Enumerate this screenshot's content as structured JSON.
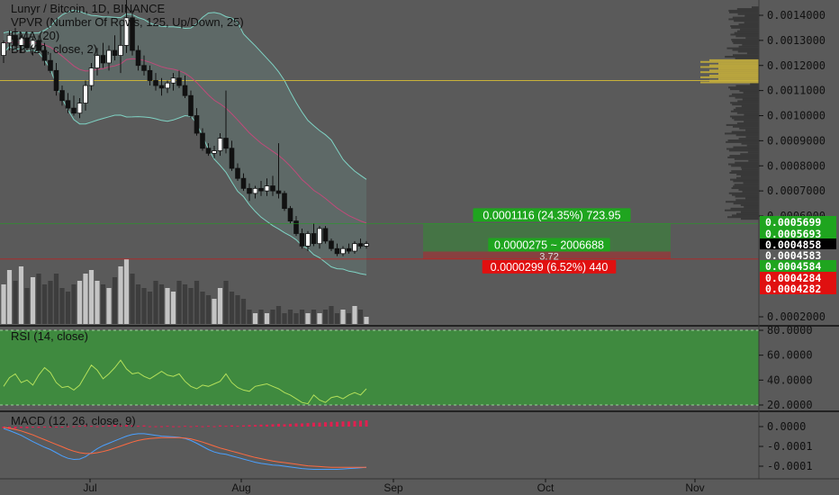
{
  "chart_data": {
    "type": "candlestick",
    "header": {
      "title": "Lunyr / Bitcoin, 1D, BINANCE",
      "indicators": [
        "VPVR (Number Of Rows, 125, Up/Down, 25)",
        "EMA (20)",
        "BB (20, close, 2)"
      ]
    },
    "price_axis": {
      "ticks": [
        "0.0014000",
        "0.0013000",
        "0.0012000",
        "0.0011000",
        "0.0010000",
        "0.0009000",
        "0.0008000",
        "0.0007000",
        "0.0006000",
        "0.0002000"
      ],
      "tick_values": [
        0.0014,
        0.0013,
        0.0012,
        0.0011,
        0.001,
        0.0009,
        0.0008,
        0.0007,
        0.0006,
        0.0002
      ]
    },
    "price_labels": [
      {
        "text": "0.0005699",
        "value": 0.0005699,
        "color": "#1fa51f"
      },
      {
        "text": "0.0005693",
        "value": 0.0005693,
        "color": "#1fa51f"
      },
      {
        "text": "0.0004858",
        "value": 0.0004858,
        "color": "#000000"
      },
      {
        "text": "0.0004583",
        "value": 0.0004583,
        "color": "#5a5a5a"
      },
      {
        "text": "0.0004584",
        "value": 0.0004584,
        "color": "#1fa51f"
      },
      {
        "text": "0.0004284",
        "value": 0.0004284,
        "color": "#e01010"
      },
      {
        "text": "0.0004282",
        "value": 0.0004282,
        "color": "#e01010"
      }
    ],
    "time_axis": {
      "ticks": [
        "Jul",
        "Aug",
        "Sep",
        "Oct",
        "Nov"
      ]
    },
    "position": {
      "target_label": "0.0001116 (24.35%) 723.95",
      "mid_label": "0.0000275 ~ 2006688",
      "mid_sub_label": "3.72",
      "stop_label": "0.0000299 (6.52%) 440",
      "entry": 0.0004583,
      "target": 0.0005699,
      "stop": 0.0004284
    },
    "horizontal_line": 0.00114,
    "candles": [
      [
        0.00124,
        0.0013,
        0.00121,
        0.00129
      ],
      [
        0.00129,
        0.00134,
        0.00126,
        0.00132
      ],
      [
        0.00132,
        0.00135,
        0.00127,
        0.00128
      ],
      [
        0.00128,
        0.00132,
        0.00125,
        0.00131
      ],
      [
        0.00131,
        0.00133,
        0.00126,
        0.00127
      ],
      [
        0.00127,
        0.00131,
        0.00124,
        0.0013
      ],
      [
        0.0013,
        0.00132,
        0.00125,
        0.00126
      ],
      [
        0.00126,
        0.00129,
        0.0012,
        0.00122
      ],
      [
        0.00122,
        0.00125,
        0.00117,
        0.00118
      ],
      [
        0.00118,
        0.00121,
        0.00108,
        0.0011
      ],
      [
        0.0011,
        0.00112,
        0.00104,
        0.00106
      ],
      [
        0.00106,
        0.00109,
        0.00101,
        0.00103
      ],
      [
        0.00103,
        0.00108,
        0.001,
        0.00101
      ],
      [
        0.00101,
        0.00107,
        0.00099,
        0.00105
      ],
      [
        0.00105,
        0.00114,
        0.00102,
        0.00112
      ],
      [
        0.00112,
        0.00121,
        0.0011,
        0.00119
      ],
      [
        0.00119,
        0.00127,
        0.00116,
        0.00124
      ],
      [
        0.00124,
        0.00129,
        0.00119,
        0.00121
      ],
      [
        0.00121,
        0.00128,
        0.00118,
        0.00126
      ],
      [
        0.00126,
        0.00132,
        0.00122,
        0.00124
      ],
      [
        0.00124,
        0.00136,
        0.00117,
        0.00128
      ],
      [
        0.00128,
        0.00147,
        0.00125,
        0.00139
      ],
      [
        0.00139,
        0.00142,
        0.00124,
        0.00126
      ],
      [
        0.00126,
        0.00128,
        0.00118,
        0.0012
      ],
      [
        0.0012,
        0.00124,
        0.00116,
        0.00118
      ],
      [
        0.00118,
        0.0012,
        0.00112,
        0.00114
      ],
      [
        0.00114,
        0.00117,
        0.0011,
        0.00112
      ],
      [
        0.00112,
        0.00115,
        0.00108,
        0.00111
      ],
      [
        0.00111,
        0.00114,
        0.00109,
        0.00113
      ],
      [
        0.00113,
        0.00117,
        0.0011,
        0.00115
      ],
      [
        0.00115,
        0.00118,
        0.00111,
        0.00112
      ],
      [
        0.00112,
        0.00116,
        0.00107,
        0.00108
      ],
      [
        0.00108,
        0.0011,
        0.00099,
        0.001
      ],
      [
        0.001,
        0.00103,
        0.00092,
        0.00093
      ],
      [
        0.00093,
        0.00095,
        0.00086,
        0.00087
      ],
      [
        0.00087,
        0.00089,
        0.00084,
        0.00085
      ],
      [
        0.00085,
        0.00088,
        0.00083,
        0.00086
      ],
      [
        0.00086,
        0.00093,
        0.00084,
        0.00091
      ],
      [
        0.00091,
        0.0011,
        0.00085,
        0.00087
      ],
      [
        0.00087,
        0.0009,
        0.00078,
        0.00079
      ],
      [
        0.00079,
        0.00081,
        0.00074,
        0.00075
      ],
      [
        0.00075,
        0.00077,
        0.0007,
        0.00071
      ],
      [
        0.00071,
        0.00073,
        0.00066,
        0.00069
      ],
      [
        0.00069,
        0.00072,
        0.00067,
        0.00071
      ],
      [
        0.00071,
        0.00074,
        0.00068,
        0.0007
      ],
      [
        0.0007,
        0.00075,
        0.00068,
        0.00072
      ],
      [
        0.00072,
        0.00076,
        0.00068,
        0.0007
      ],
      [
        0.0007,
        0.00089,
        0.00067,
        0.00069
      ],
      [
        0.00069,
        0.0007,
        0.00062,
        0.00063
      ],
      [
        0.00063,
        0.00064,
        0.00057,
        0.00058
      ],
      [
        0.00058,
        0.0006,
        0.00052,
        0.00053
      ],
      [
        0.00053,
        0.00055,
        0.00047,
        0.00048
      ],
      [
        0.00048,
        0.00054,
        0.00046,
        0.00053
      ],
      [
        0.00053,
        0.00057,
        0.00048,
        0.00049
      ],
      [
        0.00049,
        0.00056,
        0.00047,
        0.00055
      ],
      [
        0.00055,
        0.00056,
        0.00049,
        0.0005
      ],
      [
        0.0005,
        0.00051,
        0.00046,
        0.00047
      ],
      [
        0.00047,
        0.00049,
        0.00044,
        0.00045
      ],
      [
        0.00045,
        0.00048,
        0.00044,
        0.00047
      ],
      [
        0.00047,
        0.00049,
        0.00045,
        0.00046
      ],
      [
        0.00046,
        0.0005,
        0.00045,
        0.00049
      ],
      [
        0.00049,
        0.00051,
        0.00047,
        0.00048
      ],
      [
        0.00048,
        0.0005,
        0.00047,
        0.00049
      ]
    ],
    "volume_rel": [
      0.55,
      0.75,
      0.6,
      0.8,
      0.5,
      0.65,
      0.7,
      0.55,
      0.6,
      0.7,
      0.5,
      0.45,
      0.55,
      0.6,
      0.7,
      0.75,
      0.6,
      0.55,
      0.5,
      0.65,
      0.8,
      0.9,
      0.7,
      0.55,
      0.5,
      0.45,
      0.6,
      0.55,
      0.5,
      0.45,
      0.6,
      0.55,
      0.5,
      0.6,
      0.45,
      0.4,
      0.35,
      0.5,
      0.6,
      0.45,
      0.4,
      0.35,
      0.2,
      0.15,
      0.2,
      0.15,
      0.2,
      0.25,
      0.15,
      0.2,
      0.15,
      0.2,
      0.15,
      0.2,
      0.15,
      0.2,
      0.25,
      0.15,
      0.2,
      0.15,
      0.25,
      0.2,
      0.1
    ],
    "rsi": {
      "label": "RSI (14, close)",
      "ticks": [
        "80.0000",
        "60.0000",
        "40.0000",
        "20.0000"
      ],
      "tick_values": [
        80,
        60,
        40,
        20
      ],
      "values": [
        35,
        42,
        45,
        38,
        40,
        36,
        44,
        50,
        46,
        38,
        34,
        35,
        32,
        36,
        44,
        52,
        48,
        41,
        45,
        50,
        56,
        49,
        45,
        46,
        43,
        41,
        44,
        47,
        44,
        43,
        45,
        39,
        35,
        33,
        36,
        35,
        37,
        39,
        45,
        38,
        34,
        32,
        31,
        35,
        36,
        37,
        35,
        33,
        30,
        28,
        25,
        22,
        21,
        28,
        24,
        22,
        26,
        27,
        25,
        28,
        30,
        28,
        33
      ]
    },
    "macd": {
      "label": "MACD (12, 26, close, 9)",
      "ticks": [
        "0.0000",
        "-0.0001",
        "-0.0001"
      ],
      "tick_values": [
        0.0,
        -5e-05,
        -0.0001
      ],
      "histogram": [
        -4e-06,
        -6e-06,
        -5e-06,
        -3e-06,
        -4e-06,
        -2e-06,
        -3e-06,
        -2e-06,
        -1e-06,
        -2e-06,
        -1e-06,
        1e-06,
        1e-06,
        2e-06,
        3e-06,
        2e-06,
        1e-06,
        2e-06,
        3e-06,
        4e-06,
        3e-06,
        4e-06,
        3e-06,
        2e-06,
        3e-06,
        1e-06,
        1e-06,
        1e-06,
        2e-06,
        1e-06,
        1e-06,
        2e-06,
        1e-06,
        2e-06,
        1e-06,
        2e-06,
        1e-06,
        3e-06,
        2e-06,
        3e-06,
        2e-06,
        3e-06,
        4e-06,
        4e-06,
        5e-06,
        5e-06,
        6e-06,
        7e-06,
        6e-06,
        7e-06,
        8e-06,
        8e-06,
        9e-06,
        1e-05,
        1e-05,
        1.1e-05,
        1.2e-05,
        1.2e-05,
        1.3e-05,
        1.3e-05,
        1.4e-05,
        1.5e-05,
        1.6e-05
      ],
      "macd_line": [
        -5e-06,
        -1e-05,
        -1.6e-05,
        -2.2e-05,
        -3e-05,
        -3.8e-05,
        -4.5e-05,
        -5.2e-05,
        -5.8e-05,
        -6.6e-05,
        -7.4e-05,
        -8e-05,
        -8.3e-05,
        -8.2e-05,
        -7.6e-05,
        -6.6e-05,
        -5.6e-05,
        -4.8e-05,
        -4.2e-05,
        -3.6e-05,
        -3e-05,
        -2.4e-05,
        -2e-05,
        -1.8e-05,
        -1.8e-05,
        -2e-05,
        -2.2e-05,
        -2.4e-05,
        -2.5e-05,
        -2.6e-05,
        -2.7e-05,
        -3e-05,
        -3.5e-05,
        -4.2e-05,
        -5e-05,
        -5.8e-05,
        -6.4e-05,
        -6.8e-05,
        -7e-05,
        -7.4e-05,
        -7.8e-05,
        -8.2e-05,
        -8.6e-05,
        -9e-05,
        -9.3e-05,
        -9.5e-05,
        -9.7e-05,
        -9.8e-05,
        -0.0001,
        -0.000102,
        -0.000104,
        -0.000106,
        -0.000107,
        -0.000108,
        -0.000108,
        -0.000108,
        -0.000108,
        -0.000108,
        -0.000107,
        -0.000106,
        -0.000105,
        -0.000104,
        -0.000103
      ],
      "signal_line": [
        -2e-06,
        -4e-06,
        -7e-06,
        -1.1e-05,
        -1.6e-05,
        -2.1e-05,
        -2.7e-05,
        -3.3e-05,
        -3.9e-05,
        -4.5e-05,
        -5.1e-05,
        -5.7e-05,
        -6.2e-05,
        -6.6e-05,
        -6.8e-05,
        -6.8e-05,
        -6.6e-05,
        -6.3e-05,
        -5.9e-05,
        -5.4e-05,
        -4.9e-05,
        -4.4e-05,
        -3.9e-05,
        -3.5e-05,
        -3.2e-05,
        -3e-05,
        -2.9e-05,
        -2.8e-05,
        -2.8e-05,
        -2.8e-05,
        -2.8e-05,
        -2.9e-05,
        -3.1e-05,
        -3.5e-05,
        -3.9e-05,
        -4.4e-05,
        -4.9e-05,
        -5.4e-05,
        -5.8e-05,
        -6.2e-05,
        -6.6e-05,
        -7e-05,
        -7.4e-05,
        -7.8e-05,
        -8.1e-05,
        -8.4e-05,
        -8.7e-05,
        -8.9e-05,
        -9.1e-05,
        -9.3e-05,
        -9.5e-05,
        -9.7e-05,
        -9.9e-05,
        -0.0001,
        -0.000101,
        -0.000102,
        -0.000103,
        -0.000103,
        -0.000103,
        -0.000103,
        -0.000103,
        -0.000103,
        -0.000103
      ]
    },
    "colors": {
      "background": "#5a5a5a",
      "candle_body": "#111111",
      "candle_up": "#ffffff",
      "bb_band": "#7fd3c4",
      "ema": "#c04a7a",
      "rsi_fill": "#3f8a3f",
      "rsi_line": "#b3e05a",
      "profit": "#1fa51f",
      "loss": "#e01010",
      "macd_hist": "#e02050",
      "macd_line": "#4aa0ff",
      "signal_line": "#ff6a40",
      "vpvr": "#333333",
      "vpvr_poc": "#c9b23a"
    },
    "grid": false,
    "legend_position": "top-left"
  }
}
